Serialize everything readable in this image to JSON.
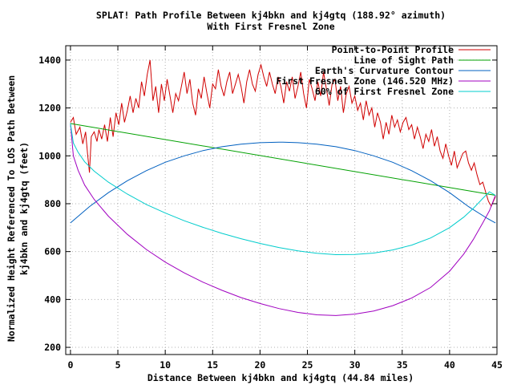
{
  "chart_data": {
    "type": "line",
    "title": "SPLAT! Path Profile Between kj4bkn and kj4gtq (188.92° azimuth)",
    "subtitle": "With First Fresnel Zone",
    "xlabel": "Distance Between kj4bkn and kj4gtq (44.84 miles)",
    "ylabel": "Normalized Height Referenced To LOS Path Between",
    "ylabel2": "kj4bkn and kj4gtq (feet)",
    "xlim": [
      -0.5,
      45
    ],
    "ylim": [
      170,
      1460
    ],
    "xticks": [
      0,
      5,
      10,
      15,
      20,
      25,
      30,
      35,
      40,
      45
    ],
    "yticks": [
      200,
      400,
      600,
      800,
      1000,
      1200,
      1400
    ],
    "grid": true,
    "legend_position": "top-right",
    "series": [
      {
        "name": "Point-to-Point Profile",
        "color": "#d00000",
        "x": [
          0,
          0.3,
          0.6,
          1.0,
          1.3,
          1.6,
          1.8,
          2.0,
          2.2,
          2.5,
          2.8,
          3.0,
          3.3,
          3.6,
          3.9,
          4.2,
          4.5,
          4.8,
          5.1,
          5.4,
          5.7,
          6.0,
          6.3,
          6.6,
          6.9,
          7.2,
          7.5,
          7.8,
          8.1,
          8.4,
          8.7,
          9.0,
          9.3,
          9.6,
          9.9,
          10.2,
          10.5,
          10.8,
          11.1,
          11.4,
          11.7,
          12.0,
          12.3,
          12.6,
          12.9,
          13.2,
          13.5,
          13.8,
          14.1,
          14.4,
          14.7,
          15.0,
          15.3,
          15.6,
          15.9,
          16.2,
          16.5,
          16.8,
          17.1,
          17.4,
          17.7,
          18.0,
          18.3,
          18.6,
          18.9,
          19.2,
          19.5,
          19.8,
          20.1,
          20.4,
          20.7,
          21.0,
          21.3,
          21.6,
          21.9,
          22.2,
          22.5,
          22.8,
          23.1,
          23.4,
          23.7,
          24.0,
          24.3,
          24.6,
          24.9,
          25.2,
          25.5,
          25.8,
          26.1,
          26.4,
          26.7,
          27.0,
          27.3,
          27.6,
          27.9,
          28.2,
          28.5,
          28.8,
          29.1,
          29.4,
          29.7,
          30.0,
          30.3,
          30.6,
          30.9,
          31.2,
          31.5,
          31.8,
          32.1,
          32.4,
          32.7,
          33.0,
          33.3,
          33.6,
          33.9,
          34.2,
          34.5,
          34.8,
          35.1,
          35.4,
          35.7,
          36.0,
          36.3,
          36.6,
          36.9,
          37.2,
          37.5,
          37.8,
          38.1,
          38.4,
          38.7,
          39.0,
          39.3,
          39.6,
          39.9,
          40.2,
          40.5,
          40.8,
          41.1,
          41.4,
          41.7,
          42.0,
          42.3,
          42.6,
          42.9,
          43.2,
          43.5,
          43.8,
          44.1,
          44.4,
          44.84
        ],
        "y": [
          1140,
          1160,
          1090,
          1120,
          1050,
          1100,
          1010,
          930,
          1080,
          1100,
          1060,
          1110,
          1070,
          1130,
          1060,
          1160,
          1080,
          1180,
          1130,
          1220,
          1140,
          1190,
          1250,
          1180,
          1240,
          1200,
          1310,
          1250,
          1340,
          1400,
          1230,
          1290,
          1180,
          1300,
          1230,
          1320,
          1250,
          1180,
          1260,
          1230,
          1290,
          1350,
          1260,
          1320,
          1220,
          1170,
          1280,
          1240,
          1330,
          1260,
          1200,
          1300,
          1280,
          1360,
          1290,
          1250,
          1310,
          1350,
          1260,
          1300,
          1340,
          1290,
          1220,
          1310,
          1360,
          1300,
          1270,
          1340,
          1380,
          1330,
          1290,
          1350,
          1300,
          1260,
          1330,
          1290,
          1220,
          1310,
          1270,
          1330,
          1240,
          1290,
          1350,
          1260,
          1200,
          1320,
          1280,
          1230,
          1310,
          1250,
          1350,
          1280,
          1210,
          1300,
          1320,
          1230,
          1290,
          1180,
          1260,
          1290,
          1220,
          1250,
          1190,
          1220,
          1150,
          1230,
          1170,
          1200,
          1120,
          1180,
          1140,
          1070,
          1140,
          1090,
          1170,
          1120,
          1150,
          1100,
          1140,
          1160,
          1110,
          1130,
          1070,
          1120,
          1080,
          1030,
          1090,
          1060,
          1110,
          1040,
          1080,
          1020,
          990,
          1050,
          1000,
          960,
          1020,
          950,
          980,
          1010,
          1020,
          970,
          940,
          970,
          920,
          880,
          890,
          850,
          810,
          790,
          830
        ]
      },
      {
        "name": "Line of Sight Path",
        "color": "#00a000",
        "x": [
          0,
          44.84
        ],
        "y": [
          1135,
          835
        ]
      },
      {
        "name": "Earth's Curvature Contour",
        "color": "#0060c0",
        "x": [
          0,
          2,
          4,
          6,
          8,
          10,
          12,
          14,
          16,
          18,
          20,
          22,
          22.42,
          24,
          26,
          28,
          30,
          32,
          34,
          36,
          38,
          40,
          42,
          44,
          44.84
        ],
        "y": [
          720,
          788,
          846,
          896,
          938,
          973,
          1000,
          1022,
          1038,
          1049,
          1055,
          1057,
          1057,
          1055,
          1049,
          1038,
          1022,
          1000,
          973,
          938,
          896,
          846,
          788,
          738,
          720
        ]
      },
      {
        "name": "First Fresnel Zone (146.520 MHz)",
        "color": "#a000c0",
        "x": [
          0,
          0.3,
          0.8,
          1.5,
          2.5,
          4,
          6,
          8,
          10,
          12,
          14,
          16,
          18,
          20,
          22,
          24,
          26,
          28,
          30,
          32,
          34,
          36,
          38,
          40,
          41.5,
          42.5,
          43.5,
          44.2,
          44.84
        ],
        "y": [
          1135,
          1000,
          940,
          878,
          818,
          748,
          672,
          609,
          556,
          511,
          472,
          438,
          408,
          383,
          362,
          346,
          336,
          333,
          339,
          352,
          374,
          406,
          450,
          518,
          590,
          650,
          720,
          770,
          835
        ]
      },
      {
        "name": "60% of First Fresnel Zone",
        "color": "#00cccc",
        "x": [
          0,
          0.3,
          0.8,
          1.5,
          2.5,
          4,
          6,
          8,
          10,
          12,
          14,
          16,
          18,
          20,
          22,
          24,
          26,
          28,
          30,
          32,
          34,
          36,
          38,
          40,
          41.5,
          42.5,
          43.5,
          44.2,
          44.84
        ],
        "y": [
          1135,
          1054,
          1015,
          975,
          936,
          890,
          840,
          797,
          761,
          729,
          701,
          676,
          654,
          634,
          617,
          603,
          593,
          587,
          588,
          594,
          607,
          627,
          657,
          700,
          744,
          780,
          822,
          850,
          835
        ]
      }
    ]
  }
}
